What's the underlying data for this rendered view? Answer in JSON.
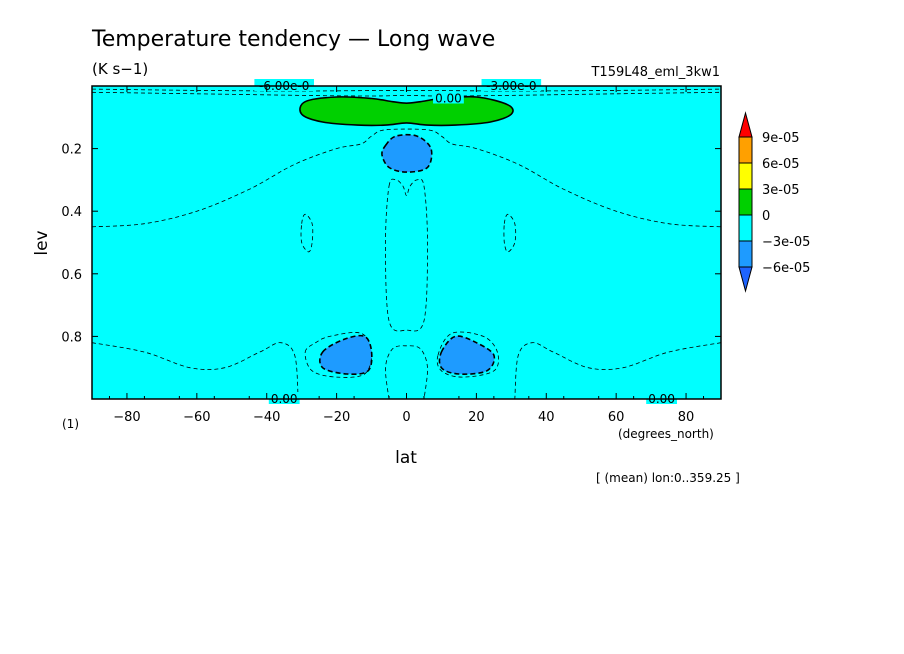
{
  "chart_data": {
    "type": "heatmap",
    "title": "Temperature tendency — Long wave",
    "units": "(K s−1)",
    "experiment": "T159L48_eml_3kw1",
    "xlabel": "lat",
    "xunits": "(degrees_north)",
    "ylabel": "lev",
    "yunits": "(1)",
    "xlim": [
      -90,
      90
    ],
    "ylim": [
      1.0,
      0.0
    ],
    "y_reversed": true,
    "xticks": [
      -80,
      -60,
      -40,
      -20,
      0,
      20,
      40,
      60,
      80
    ],
    "yticks": [
      0.2,
      0.4,
      0.6,
      0.8
    ],
    "footnote": "[ (mean) lon:0..359.25 ]",
    "colorbar": {
      "labels": [
        "9e-05",
        "6e-05",
        "3e-05",
        "0",
        "−3e-05",
        "−6e-05"
      ],
      "colors": [
        "#ff0000",
        "#ffa000",
        "#ffff00",
        "#00d000",
        "#00ffff",
        "#1e9bff",
        "#1e64ff"
      ]
    },
    "background_color": "#00ffff",
    "regions": [
      {
        "range": "0 to 3e-05",
        "color": "#00d000",
        "outline": [
          [
            -29,
            0.05
          ],
          [
            -20,
            0.035
          ],
          [
            -10,
            0.04
          ],
          [
            -4,
            0.05
          ],
          [
            0,
            0.055
          ],
          [
            4,
            0.05
          ],
          [
            10,
            0.04
          ],
          [
            20,
            0.035
          ],
          [
            29,
            0.06
          ],
          [
            30,
            0.09
          ],
          [
            24,
            0.115
          ],
          [
            14,
            0.125
          ],
          [
            6,
            0.125
          ],
          [
            0,
            0.118
          ],
          [
            -6,
            0.125
          ],
          [
            -14,
            0.125
          ],
          [
            -24,
            0.115
          ],
          [
            -30,
            0.09
          ]
        ]
      },
      {
        "range": "-6e-05 to -3e-05",
        "color": "#1e9bff",
        "outline": [
          [
            -6,
            0.19
          ],
          [
            -3,
            0.16
          ],
          [
            3,
            0.16
          ],
          [
            7,
            0.2
          ],
          [
            6,
            0.26
          ],
          [
            0,
            0.275
          ],
          [
            -5,
            0.26
          ],
          [
            -7,
            0.22
          ]
        ]
      },
      {
        "range": "-6e-05 to -3e-05",
        "color": "#1e9bff",
        "outline": [
          [
            -24,
            0.85
          ],
          [
            -18,
            0.81
          ],
          [
            -12,
            0.8
          ],
          [
            -10,
            0.85
          ],
          [
            -11,
            0.91
          ],
          [
            -17,
            0.92
          ],
          [
            -24,
            0.9
          ]
        ]
      },
      {
        "range": "-6e-05 to -3e-05",
        "color": "#1e9bff",
        "outline": [
          [
            10,
            0.85
          ],
          [
            14,
            0.8
          ],
          [
            20,
            0.82
          ],
          [
            25,
            0.86
          ],
          [
            23,
            0.91
          ],
          [
            15,
            0.92
          ],
          [
            10,
            0.9
          ]
        ]
      }
    ],
    "dashed_contours": [
      [
        [
          -90,
          0.01
        ],
        [
          -60,
          0.014
        ],
        [
          -30,
          0.016
        ],
        [
          0,
          0.014
        ],
        [
          30,
          0.016
        ],
        [
          60,
          0.014
        ],
        [
          90,
          0.01
        ]
      ],
      [
        [
          -90,
          0.02
        ],
        [
          -60,
          0.025
        ],
        [
          -30,
          0.03
        ],
        [
          -10,
          0.032
        ],
        [
          0,
          0.03
        ],
        [
          10,
          0.032
        ],
        [
          30,
          0.03
        ],
        [
          60,
          0.025
        ],
        [
          90,
          0.02
        ]
      ],
      [
        [
          -90,
          0.45
        ],
        [
          -75,
          0.44
        ],
        [
          -60,
          0.4
        ],
        [
          -45,
          0.33
        ],
        [
          -32,
          0.25
        ],
        [
          -20,
          0.2
        ],
        [
          -13,
          0.185
        ],
        [
          -10,
          0.16
        ],
        [
          -6,
          0.14
        ],
        [
          6,
          0.14
        ],
        [
          10,
          0.16
        ],
        [
          13,
          0.185
        ],
        [
          20,
          0.2
        ],
        [
          32,
          0.25
        ],
        [
          45,
          0.33
        ],
        [
          60,
          0.4
        ],
        [
          75,
          0.44
        ],
        [
          90,
          0.45
        ]
      ],
      [
        [
          -5,
          0.32
        ],
        [
          -3,
          0.3
        ],
        [
          -1,
          0.32
        ],
        [
          0,
          0.35
        ],
        [
          1,
          0.32
        ],
        [
          3,
          0.3
        ],
        [
          5,
          0.32
        ],
        [
          6,
          0.5
        ],
        [
          5,
          0.75
        ],
        [
          0,
          0.78
        ],
        [
          -5,
          0.75
        ],
        [
          -6,
          0.5
        ]
      ],
      [
        [
          -30,
          0.44
        ],
        [
          -29,
          0.41
        ],
        [
          -27,
          0.44
        ],
        [
          -27,
          0.5
        ],
        [
          -28,
          0.53
        ],
        [
          -30,
          0.5
        ]
      ],
      [
        [
          28,
          0.44
        ],
        [
          29,
          0.41
        ],
        [
          31,
          0.44
        ],
        [
          31,
          0.5
        ],
        [
          29,
          0.53
        ],
        [
          28,
          0.5
        ]
      ],
      [
        [
          -90,
          0.82
        ],
        [
          -75,
          0.85
        ],
        [
          -62,
          0.9
        ],
        [
          -52,
          0.9
        ],
        [
          -42,
          0.85
        ],
        [
          -36,
          0.82
        ],
        [
          -32,
          0.86
        ],
        [
          -31,
          1.0
        ]
      ],
      [
        [
          90,
          0.82
        ],
        [
          75,
          0.85
        ],
        [
          62,
          0.9
        ],
        [
          52,
          0.9
        ],
        [
          42,
          0.85
        ],
        [
          36,
          0.82
        ],
        [
          32,
          0.86
        ],
        [
          31,
          1.0
        ]
      ],
      [
        [
          -29,
          0.85
        ],
        [
          -26,
          0.82
        ],
        [
          -22,
          0.8
        ],
        [
          -13,
          0.79
        ],
        [
          -10,
          0.85
        ],
        [
          -12,
          0.92
        ],
        [
          -20,
          0.93
        ],
        [
          -27,
          0.91
        ]
      ],
      [
        [
          9,
          0.86
        ],
        [
          13,
          0.79
        ],
        [
          22,
          0.8
        ],
        [
          26,
          0.85
        ],
        [
          25,
          0.91
        ],
        [
          16,
          0.93
        ],
        [
          10,
          0.91
        ]
      ],
      [
        [
          -5,
          1.0
        ],
        [
          -6,
          0.9
        ],
        [
          -4,
          0.84
        ],
        [
          0,
          0.83
        ],
        [
          4,
          0.84
        ],
        [
          6,
          0.9
        ],
        [
          5,
          1.0
        ]
      ]
    ],
    "contour_labels": [
      {
        "text": "0.00",
        "lat": 12,
        "lev": 0.04
      },
      {
        "text": "-6.00e-0",
        "lat": -35,
        "lev": 0.0
      },
      {
        "text": "-3.00e-0",
        "lat": 30,
        "lev": 0.0
      },
      {
        "text": "0.00",
        "lat": -35,
        "lev": 1.0
      },
      {
        "text": "0.00",
        "lat": 73,
        "lev": 1.0
      }
    ]
  }
}
